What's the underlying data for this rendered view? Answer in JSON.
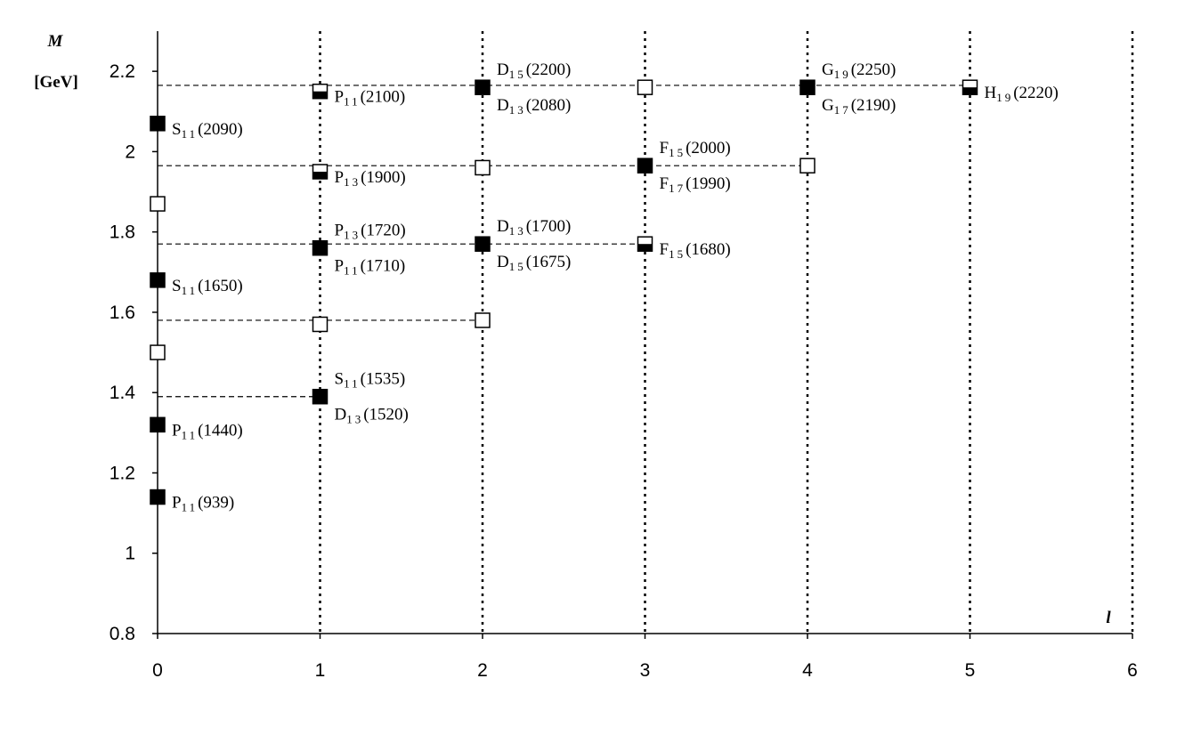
{
  "chart_data": {
    "type": "scatter",
    "y_label": "M",
    "y_unit": "[GeV]",
    "x_label": "l",
    "xlim": [
      0,
      6
    ],
    "xticks": [
      0,
      1,
      2,
      3,
      4,
      5,
      6
    ],
    "ylim": [
      0.8,
      2.3
    ],
    "yticks": [
      0.8,
      1,
      1.2,
      1.4,
      1.6,
      1.8,
      2,
      2.2
    ],
    "grid": true,
    "levels": [
      {
        "y": 2.165,
        "xmax": 5
      },
      {
        "y": 1.965,
        "xmax": 4
      },
      {
        "y": 1.77,
        "xmax": 3
      },
      {
        "y": 1.58,
        "xmax": 2
      },
      {
        "y": 1.39,
        "xmax": 1
      }
    ],
    "series": [
      {
        "style": "filled",
        "color": "#000000",
        "x": [
          0,
          0,
          0,
          0,
          1,
          1,
          2,
          2,
          3,
          4
        ],
        "values": [
          2.07,
          1.68,
          1.32,
          1.14,
          1.39,
          1.76,
          2.16,
          1.77,
          1.965,
          2.16
        ],
        "labels": [
          [
            [
              "S",
              "11",
              "(2090)"
            ]
          ],
          [
            [
              "S",
              "11",
              "(1650)"
            ]
          ],
          [
            [
              "P",
              "11",
              "(1440)"
            ]
          ],
          [
            [
              "P",
              "11",
              "(939)"
            ]
          ],
          [
            [
              "S",
              "11",
              "(1535)"
            ],
            [
              "D",
              "13",
              "(1520)"
            ]
          ],
          [
            [
              "P",
              "13",
              "(1720)"
            ],
            [
              "P",
              "11",
              "(1710)"
            ]
          ],
          [
            [
              "D",
              "15",
              "(2200)"
            ],
            [
              "D",
              "13",
              "(2080)"
            ]
          ],
          [
            [
              "D",
              "13",
              "(1700)"
            ],
            [
              "D",
              "15",
              "(1675)"
            ]
          ],
          [
            [
              "F",
              "15",
              "(2000)"
            ],
            [
              "F",
              "17",
              "(1990)"
            ]
          ],
          [
            [
              "G",
              "19",
              "(2250)"
            ],
            [
              "G",
              "17",
              "(2190)"
            ]
          ]
        ]
      },
      {
        "style": "half",
        "color": "#000000",
        "x": [
          1,
          1,
          3,
          5
        ],
        "values": [
          2.15,
          1.95,
          1.77,
          2.16
        ],
        "labels": [
          [
            [
              "P",
              "11",
              "(2100)"
            ]
          ],
          [
            [
              "P",
              "13",
              "(1900)"
            ]
          ],
          [
            [
              "F",
              "15",
              "(1680)"
            ]
          ],
          [
            [
              "H",
              "19",
              "(2220)"
            ]
          ]
        ]
      },
      {
        "style": "open",
        "color": "#000000",
        "x": [
          0,
          0,
          1,
          2,
          2,
          3,
          4
        ],
        "values": [
          1.87,
          1.5,
          1.57,
          1.58,
          1.96,
          2.16,
          1.965
        ],
        "labels": [
          [],
          [],
          [],
          [],
          [],
          [],
          []
        ]
      }
    ]
  }
}
